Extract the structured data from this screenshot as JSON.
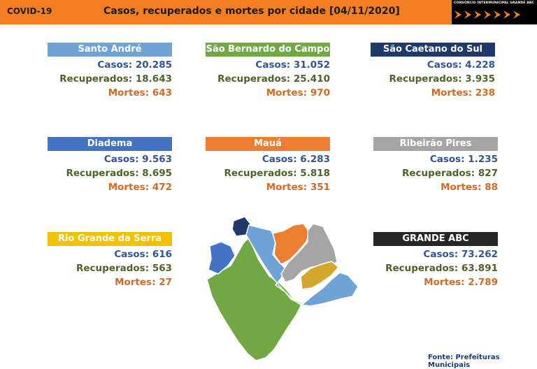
{
  "header": {
    "tag": "COVID-19",
    "title": "Casos, recuperados e mortes por cidade [04/11/2020]",
    "logo_text": "CONSÓRCIO INTERMUNICIPAL GRANDE ABC",
    "bar_color": "#f47f20"
  },
  "labels": {
    "cases": "Casos:",
    "recovered": "Recuperados:",
    "deaths": "Mortes:"
  },
  "cities": [
    {
      "name": "Santo André",
      "color": "#6fa3d6",
      "cases": "20.285",
      "recovered": "18.643",
      "deaths": "643"
    },
    {
      "name": "São Bernardo do Campo",
      "color": "#70a844",
      "cases": "31.052",
      "recovered": "25.410",
      "deaths": "970"
    },
    {
      "name": "São Caetano do Sul",
      "color": "#1f3a6a",
      "cases": "4.228",
      "recovered": "3.935",
      "deaths": "238"
    },
    {
      "name": "Diadema",
      "color": "#4472c4",
      "cases": "9.563",
      "recovered": "8.695",
      "deaths": "472"
    },
    {
      "name": "Mauá",
      "color": "#ed7d31",
      "cases": "6.283",
      "recovered": "5.818",
      "deaths": "351"
    },
    {
      "name": "Ribeirão Pires",
      "color": "#a5a5a5",
      "cases": "1.235",
      "recovered": "827",
      "deaths": "88"
    },
    {
      "name": "Rio Grande da Serra",
      "color": "#f2c200",
      "cases": "616",
      "recovered": "563",
      "deaths": "27"
    },
    {
      "name": "GRANDE ABC",
      "color": "#262626",
      "cases": "73.262",
      "recovered": "63.891",
      "deaths": "2.789"
    }
  ],
  "source": "Fonte: Prefeituras Municipais"
}
